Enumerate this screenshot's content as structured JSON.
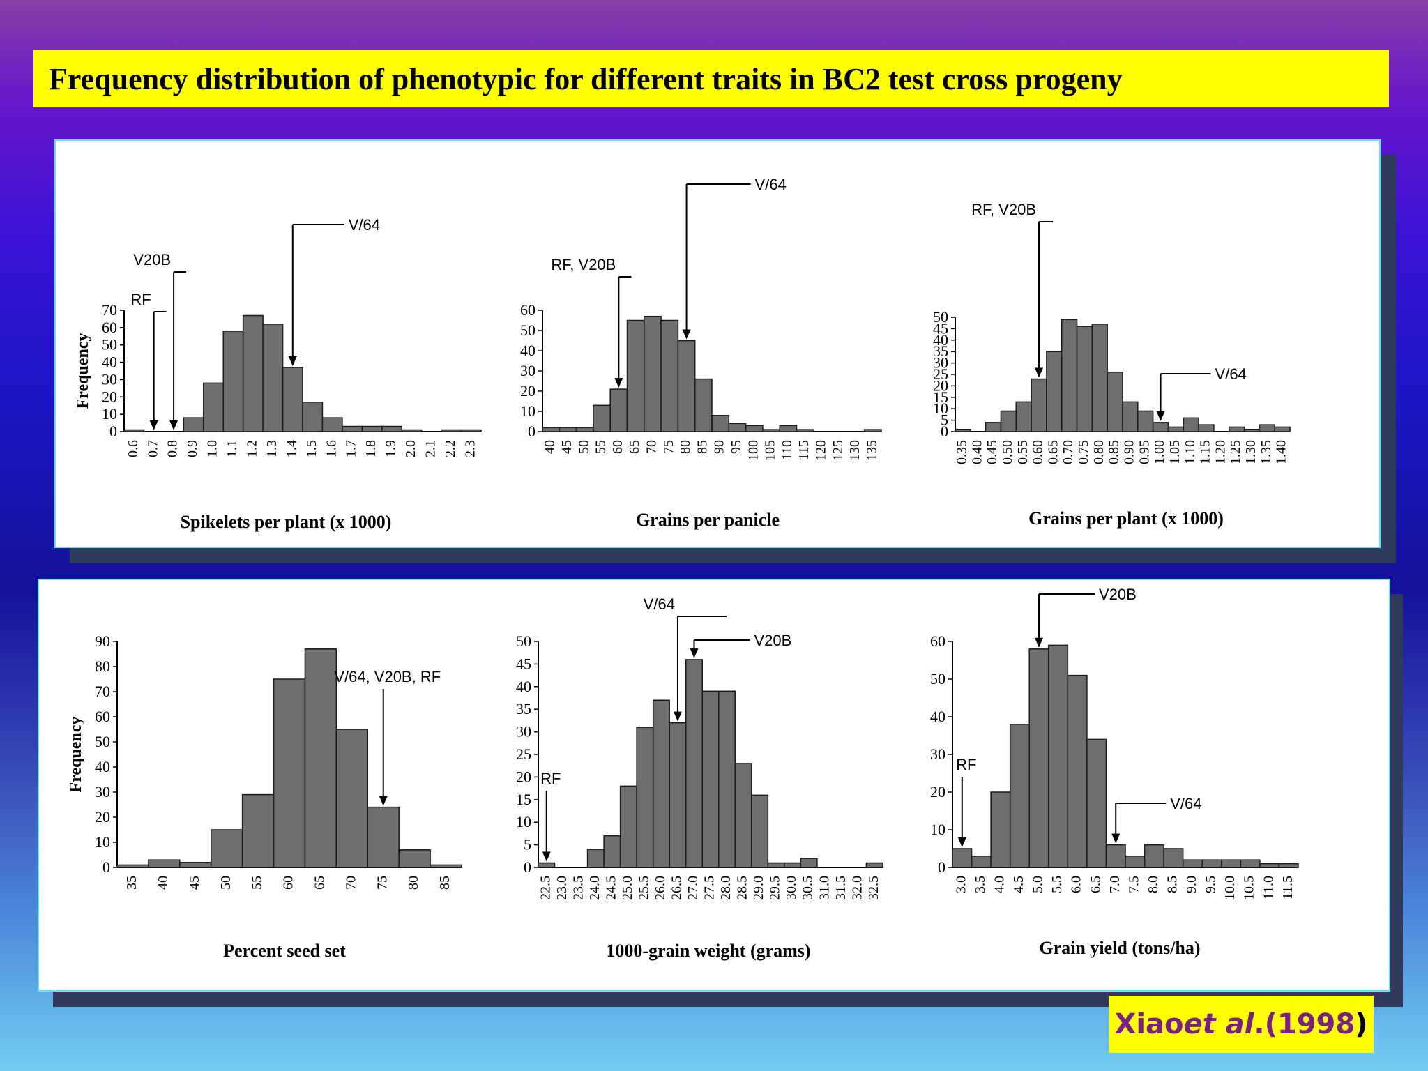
{
  "title": "Frequency distribution of phenotypic for  different traits  in BC2 test cross progeny",
  "citation": {
    "author": "Xiao ",
    "etal": "et al",
    "dot": ". ",
    "year": "(1998",
    "close": ")"
  },
  "colors": {
    "bar": "#6e6e6e",
    "bar_stroke": "#1a1a1a",
    "title_bg": "#ffff00",
    "citation_text": "#7a1e8a"
  },
  "chart_data": [
    {
      "type": "bar",
      "xlabel": "Spikelets per plant (x 1000)",
      "ylabel": "Frequency",
      "ylim": [
        0,
        70
      ],
      "yticks": [
        0,
        10,
        20,
        30,
        40,
        50,
        60,
        70
      ],
      "categories": [
        "0.6",
        "0.7",
        "0.8",
        "0.9",
        "1.0",
        "1.1",
        "1.2",
        "1.3",
        "1.4",
        "1.5",
        "1.6",
        "1.7",
        "1.8",
        "1.9",
        "2.0",
        "2.1",
        "2.2",
        "2.3"
      ],
      "values": [
        1,
        0,
        0,
        8,
        28,
        58,
        67,
        62,
        37,
        17,
        8,
        3,
        3,
        3,
        1,
        0,
        1,
        1
      ],
      "annotations": [
        {
          "label": "V/64",
          "value": 1.4
        },
        {
          "label": "V20B",
          "value": 0.8
        },
        {
          "label": "RF",
          "value": 0.7
        }
      ]
    },
    {
      "type": "bar",
      "xlabel": "Grains per panicle",
      "ylabel": "",
      "ylim": [
        0,
        60
      ],
      "yticks": [
        0,
        10,
        20,
        30,
        40,
        50,
        60
      ],
      "categories": [
        "40",
        "45",
        "50",
        "55",
        "60",
        "65",
        "70",
        "75",
        "80",
        "85",
        "90",
        "95",
        "100",
        "105",
        "110",
        "115",
        "120",
        "125",
        "130",
        "135"
      ],
      "values": [
        2,
        2,
        2,
        13,
        21,
        55,
        57,
        55,
        45,
        26,
        8,
        4,
        3,
        1,
        3,
        1,
        0,
        0,
        0,
        1
      ],
      "annotations": [
        {
          "label": "V/64",
          "value": 80
        },
        {
          "label": "RF, V20B",
          "value": 60
        }
      ]
    },
    {
      "type": "bar",
      "xlabel": "Grains per plant (x 1000)",
      "ylabel": "",
      "ylim": [
        0,
        50
      ],
      "yticks": [
        0,
        5,
        10,
        15,
        20,
        25,
        30,
        35,
        40,
        45,
        50
      ],
      "categories": [
        "0.35",
        "0.40",
        "0.45",
        "0.50",
        "0.55",
        "0.60",
        "0.65",
        "0.70",
        "0.75",
        "0.80",
        "0.85",
        "0.90",
        "0.95",
        "1.00",
        "1.05",
        "1.10",
        "1.15",
        "1.20",
        "1.25",
        "1.30",
        "1.35",
        "1.40"
      ],
      "values": [
        1,
        0,
        4,
        9,
        13,
        23,
        35,
        49,
        46,
        47,
        26,
        13,
        9,
        4,
        2,
        6,
        3,
        0,
        2,
        1,
        3,
        2
      ],
      "annotations": [
        {
          "label": "RF, V20B",
          "value": 0.6
        },
        {
          "label": "V/64",
          "value": 1.0
        }
      ]
    },
    {
      "type": "bar",
      "xlabel": "Percent seed set",
      "ylabel": "Frequency",
      "ylim": [
        0,
        90
      ],
      "yticks": [
        0,
        10,
        20,
        30,
        40,
        50,
        60,
        70,
        80,
        90
      ],
      "categories": [
        "35",
        "40",
        "45",
        "50",
        "55",
        "60",
        "65",
        "70",
        "75",
        "80",
        "85"
      ],
      "values": [
        1,
        3,
        2,
        15,
        29,
        75,
        87,
        55,
        24,
        7,
        1
      ],
      "annotations": [
        {
          "label": "V/64, V20B, RF",
          "value": 75
        }
      ]
    },
    {
      "type": "bar",
      "xlabel": "1000-grain weight (grams)",
      "ylabel": "",
      "ylim": [
        0,
        50
      ],
      "yticks": [
        0,
        5,
        10,
        15,
        20,
        25,
        30,
        35,
        40,
        45,
        50
      ],
      "categories": [
        "22.5",
        "23.0",
        "23.5",
        "24.0",
        "24.5",
        "25.0",
        "25.5",
        "26.0",
        "26.5",
        "27.0",
        "27.5",
        "28.0",
        "28.5",
        "29.0",
        "29.5",
        "30.0",
        "30.5",
        "31.0",
        "31.5",
        "32.0",
        "32.5"
      ],
      "values": [
        1,
        0,
        0,
        4,
        7,
        18,
        31,
        37,
        32,
        46,
        39,
        39,
        23,
        16,
        1,
        1,
        2,
        0,
        0,
        0,
        1
      ],
      "annotations": [
        {
          "label": "V/64",
          "value": 26.5
        },
        {
          "label": "V20B",
          "value": 27.0
        },
        {
          "label": "RF",
          "value": 22.5
        }
      ]
    },
    {
      "type": "bar",
      "xlabel": "Grain yield (tons/ha)",
      "ylabel": "",
      "ylim": [
        0,
        60
      ],
      "yticks": [
        0,
        10,
        20,
        30,
        40,
        50,
        60
      ],
      "categories": [
        "3.0",
        "3.5",
        "4.0",
        "4.5",
        "5.0",
        "5.5",
        "6.0",
        "6.5",
        "7.0",
        "7.5",
        "8.0",
        "8.5",
        "9.0",
        "9.5",
        "10.0",
        "10.5",
        "11.0",
        "11.5"
      ],
      "values": [
        5,
        3,
        20,
        38,
        58,
        59,
        51,
        34,
        6,
        3,
        6,
        5,
        2,
        2,
        2,
        2,
        1,
        1
      ],
      "annotations": [
        {
          "label": "V20B",
          "value": 5.0
        },
        {
          "label": "RF",
          "value": 3.0
        },
        {
          "label": "V/64",
          "value": 7.0
        }
      ]
    }
  ]
}
